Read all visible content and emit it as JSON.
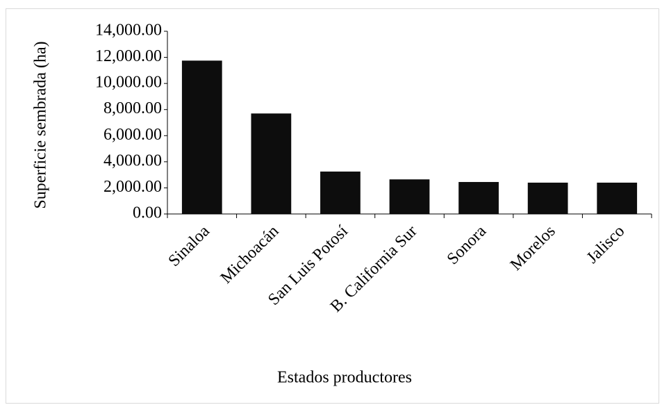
{
  "chart_data": {
    "type": "bar",
    "categories": [
      "Sinaloa",
      "Michoacán",
      "San Luis Potosí",
      "B. California Sur",
      "Sonora",
      "Morelos",
      "Jalisco"
    ],
    "values": [
      11750,
      7700,
      3250,
      2650,
      2450,
      2400,
      2400
    ],
    "color": "#0d0d0d",
    "ylabel": "Superficie sembrada (ha)",
    "xlabel": "Estados productores",
    "ylim": [
      0,
      14000
    ],
    "yticks": [
      {
        "value": 0,
        "label": "0.00"
      },
      {
        "value": 2000,
        "label": "2,000.00"
      },
      {
        "value": 4000,
        "label": "4,000.00"
      },
      {
        "value": 6000,
        "label": "6,000.00"
      },
      {
        "value": 8000,
        "label": "8,000.00"
      },
      {
        "value": 10000,
        "label": "10,000.00"
      },
      {
        "value": 12000,
        "label": "12,000.00"
      },
      {
        "value": 14000,
        "label": "14,000.00"
      }
    ],
    "grid": false
  }
}
